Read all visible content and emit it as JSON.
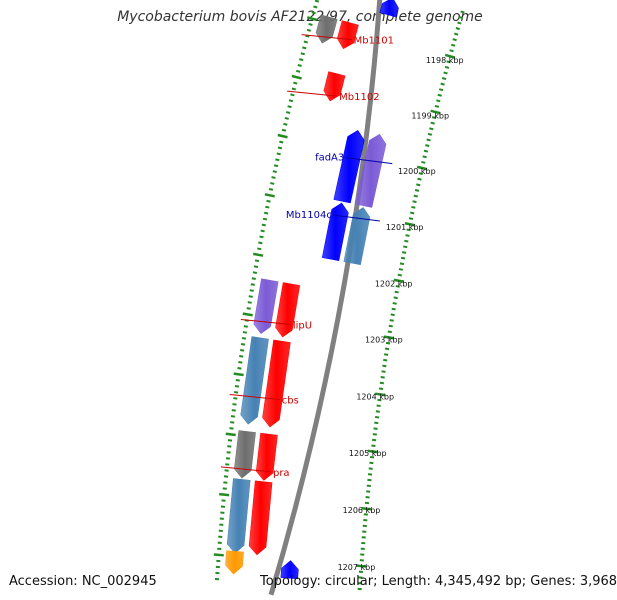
{
  "title": "Mycobacterium bovis AF2122/97, complete genome",
  "accession_label": "Accession: NC_002945",
  "topology_label": "Topology: circular; Length: 4,345,492 bp; Genes: 3,968",
  "colors": {
    "backbone": "#808080",
    "ticks": "#228B22",
    "gene_red": "#ff0000",
    "gene_blue": "#0000ff",
    "gene_purple": "#7b5bd6",
    "gene_steel": "#4682b4",
    "gene_gray": "#6e6e6e",
    "gene_orange": "#ff9900",
    "label_forward": "#cc0000",
    "label_reverse": "#0000aa"
  },
  "kbp_ticks": [
    {
      "kbp": 1198,
      "text": "1198 kbp"
    },
    {
      "kbp": 1199,
      "text": "1199 kbp"
    },
    {
      "kbp": 1200,
      "text": "1200 kbp"
    },
    {
      "kbp": 1201,
      "text": "1201 kbp"
    },
    {
      "kbp": 1202,
      "text": "1202 kbp"
    },
    {
      "kbp": 1203,
      "text": "1203 kbp"
    },
    {
      "kbp": 1204,
      "text": "1204 kbp"
    },
    {
      "kbp": 1205,
      "text": "1205 kbp"
    },
    {
      "kbp": 1206,
      "text": "1206 kbp"
    },
    {
      "kbp": 1207,
      "text": "1207 kbp"
    }
  ],
  "genes": [
    {
      "name": "Mb1101",
      "start": 1197.9,
      "end": 1198.35,
      "strand": "+",
      "ring": 1,
      "color": "gene_red"
    },
    {
      "name": "",
      "start": 1197.9,
      "end": 1198.35,
      "strand": "+",
      "ring": 2,
      "color": "gene_gray"
    },
    {
      "name": "Mb1102",
      "start": 1198.78,
      "end": 1199.25,
      "strand": "+",
      "ring": 1,
      "color": "gene_red"
    },
    {
      "name": "fadA3",
      "start": 1199.6,
      "end": 1200.85,
      "strand": "-",
      "ring": 2,
      "color": "gene_purple"
    },
    {
      "name": "",
      "start": 1199.62,
      "end": 1200.85,
      "strand": "-",
      "ring": 1,
      "color": "gene_blue"
    },
    {
      "name": "Mb1104c",
      "start": 1200.88,
      "end": 1201.85,
      "strand": "-",
      "ring": 2,
      "color": "gene_steel"
    },
    {
      "name": "",
      "start": 1200.88,
      "end": 1201.85,
      "strand": "-",
      "ring": 1,
      "color": "gene_blue"
    },
    {
      "name": "lipU",
      "start": 1202.38,
      "end": 1203.28,
      "strand": "+",
      "ring": 1,
      "color": "gene_red"
    },
    {
      "name": "",
      "start": 1202.38,
      "end": 1203.28,
      "strand": "+",
      "ring": 2,
      "color": "gene_purple"
    },
    {
      "name": "cbs",
      "start": 1203.35,
      "end": 1204.8,
      "strand": "+",
      "ring": 1,
      "color": "gene_red"
    },
    {
      "name": "",
      "start": 1203.35,
      "end": 1204.8,
      "strand": "+",
      "ring": 2,
      "color": "gene_steel"
    },
    {
      "name": "pra",
      "start": 1204.92,
      "end": 1205.7,
      "strand": "+",
      "ring": 1,
      "color": "gene_red"
    },
    {
      "name": "",
      "start": 1204.92,
      "end": 1205.7,
      "strand": "+",
      "ring": 2,
      "color": "gene_gray"
    },
    {
      "name": "",
      "start": 1205.72,
      "end": 1206.95,
      "strand": "+",
      "ring": 1,
      "color": "gene_red"
    },
    {
      "name": "",
      "start": 1205.72,
      "end": 1206.95,
      "strand": "+",
      "ring": 2,
      "color": "gene_steel"
    },
    {
      "name": "",
      "start": 1206.92,
      "end": 1207.3,
      "strand": "+",
      "ring": 2,
      "color": "gene_orange"
    },
    {
      "name": "",
      "start": 1207.0,
      "end": 1207.3,
      "strand": "-",
      "ring": 1,
      "color": "gene_blue"
    },
    {
      "name": "",
      "start": 1197.3,
      "end": 1197.6,
      "strand": "-",
      "ring": 1,
      "color": "gene_blue"
    }
  ],
  "gene_labels": [
    {
      "text": "Mb1101",
      "kbp": 1198.3,
      "side": "right",
      "color": "label_forward"
    },
    {
      "text": "Mb1102",
      "kbp": 1199.26,
      "side": "right",
      "color": "label_forward"
    },
    {
      "text": "fadA3",
      "kbp": 1200.04,
      "side": "left",
      "color": "label_reverse"
    },
    {
      "text": "Mb1104c",
      "kbp": 1201.05,
      "side": "left",
      "color": "label_reverse"
    },
    {
      "text": "lipU",
      "kbp": 1203.1,
      "side": "right",
      "color": "label_forward"
    },
    {
      "text": "cbs",
      "kbp": 1204.35,
      "side": "right",
      "color": "label_forward"
    },
    {
      "text": "pra",
      "kbp": 1205.55,
      "side": "right",
      "color": "label_forward"
    }
  ]
}
